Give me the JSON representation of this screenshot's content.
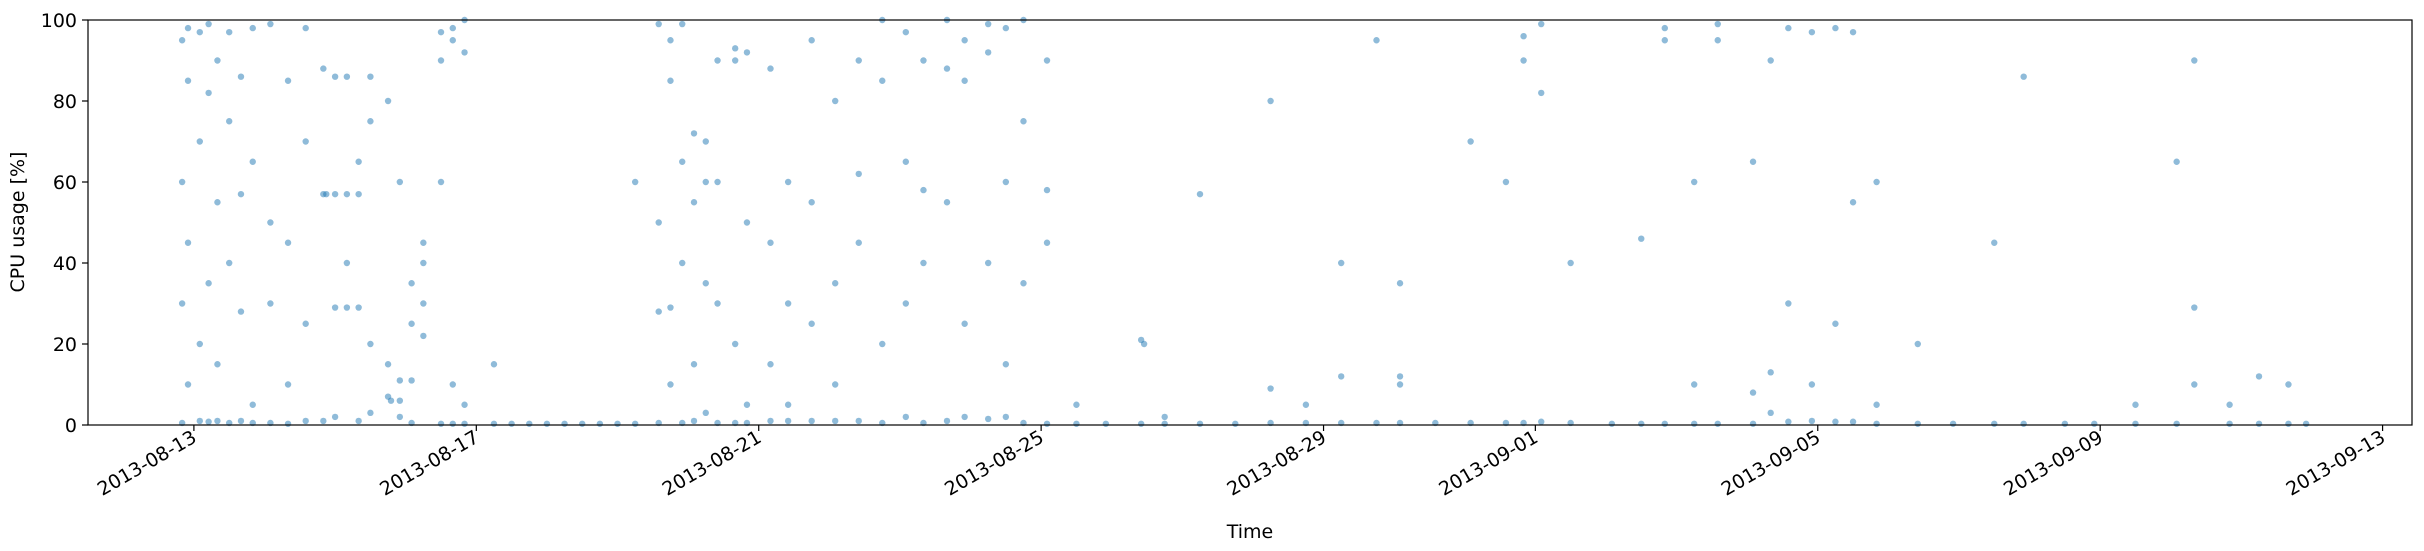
{
  "chart_data": {
    "type": "scatter",
    "x_label": "Time",
    "y_label": "CPU usage [%]",
    "color": "#1f77b4",
    "xlim": [
      "2013-08-11T12:00",
      "2013-09-13T10:00"
    ],
    "xticks": [
      "2013-08-13",
      "2013-08-17",
      "2013-08-21",
      "2013-08-25",
      "2013-08-29",
      "2013-09-01",
      "2013-09-05",
      "2013-09-09",
      "2013-09-13"
    ],
    "ylim": [
      0,
      100
    ],
    "yticks": [
      0,
      20,
      40,
      60,
      80,
      100
    ],
    "x": [
      "2013-08-12T20:00",
      "2013-08-12T20:00",
      "2013-08-12T20:00",
      "2013-08-12T20:00",
      "2013-08-12T22:00",
      "2013-08-12T22:00",
      "2013-08-12T22:00",
      "2013-08-12T22:00",
      "2013-08-13T02:00",
      "2013-08-13T02:00",
      "2013-08-13T02:00",
      "2013-08-13T02:00",
      "2013-08-13T05:00",
      "2013-08-13T05:00",
      "2013-08-13T05:00",
      "2013-08-13T05:00",
      "2013-08-13T08:00",
      "2013-08-13T08:00",
      "2013-08-13T08:00",
      "2013-08-13T08:00",
      "2013-08-13T12:00",
      "2013-08-13T12:00",
      "2013-08-13T12:00",
      "2013-08-13T12:00",
      "2013-08-13T16:00",
      "2013-08-13T16:00",
      "2013-08-13T16:00",
      "2013-08-13T16:00",
      "2013-08-13T20:00",
      "2013-08-13T20:00",
      "2013-08-13T20:00",
      "2013-08-13T20:00",
      "2013-08-14T02:00",
      "2013-08-14T02:00",
      "2013-08-14T02:00",
      "2013-08-14T02:00",
      "2013-08-14T08:00",
      "2013-08-14T08:00",
      "2013-08-14T08:00",
      "2013-08-14T08:00",
      "2013-08-14T14:00",
      "2013-08-14T14:00",
      "2013-08-14T14:00",
      "2013-08-14T14:00",
      "2013-08-14T20:00",
      "2013-08-14T21:00",
      "2013-08-14T20:00",
      "2013-08-14T20:00",
      "2013-08-15T00:00",
      "2013-08-15T00:00",
      "2013-08-15T00:00",
      "2013-08-15T00:00",
      "2013-08-15T04:00",
      "2013-08-15T04:00",
      "2013-08-15T04:00",
      "2013-08-15T04:00",
      "2013-08-15T08:00",
      "2013-08-15T08:00",
      "2013-08-15T08:00",
      "2013-08-15T08:00",
      "2013-08-15T12:00",
      "2013-08-15T12:00",
      "2013-08-15T12:00",
      "2013-08-15T12:00",
      "2013-08-15T18:00",
      "2013-08-15T19:00",
      "2013-08-15T18:00",
      "2013-08-15T18:00",
      "2013-08-15T22:00",
      "2013-08-15T22:00",
      "2013-08-15T22:00",
      "2013-08-15T22:00",
      "2013-08-16T02:00",
      "2013-08-16T02:00",
      "2013-08-16T02:00",
      "2013-08-16T02:00",
      "2013-08-16T06:00",
      "2013-08-16T06:00",
      "2013-08-16T06:00",
      "2013-08-16T06:00",
      "2013-08-16T12:00",
      "2013-08-16T12:00",
      "2013-08-16T12:00",
      "2013-08-16T12:00",
      "2013-08-16T16:00",
      "2013-08-16T16:00",
      "2013-08-16T16:00",
      "2013-08-16T16:00",
      "2013-08-16T20:00",
      "2013-08-16T20:00",
      "2013-08-16T20:00",
      "2013-08-16T20:00",
      "2013-08-17T06:00",
      "2013-08-17T06:00",
      "2013-08-17T12:00",
      "2013-08-17T18:00",
      "2013-08-18T00:00",
      "2013-08-18T06:00",
      "2013-08-18T12:00",
      "2013-08-18T18:00",
      "2013-08-19T00:00",
      "2013-08-19T06:00",
      "2013-08-19T06:00",
      "2013-08-19T14:00",
      "2013-08-19T14:00",
      "2013-08-19T14:00",
      "2013-08-19T14:00",
      "2013-08-19T18:00",
      "2013-08-19T18:00",
      "2013-08-19T18:00",
      "2013-08-19T18:00",
      "2013-08-19T22:00",
      "2013-08-19T22:00",
      "2013-08-19T22:00",
      "2013-08-19T22:00",
      "2013-08-20T02:00",
      "2013-08-20T02:00",
      "2013-08-20T02:00",
      "2013-08-20T02:00",
      "2013-08-20T06:00",
      "2013-08-20T06:00",
      "2013-08-20T06:00",
      "2013-08-20T06:00",
      "2013-08-20T10:00",
      "2013-08-20T10:00",
      "2013-08-20T10:00",
      "2013-08-20T10:00",
      "2013-08-20T16:00",
      "2013-08-20T16:00",
      "2013-08-20T16:00",
      "2013-08-20T16:00",
      "2013-08-20T20:00",
      "2013-08-20T20:00",
      "2013-08-20T20:00",
      "2013-08-20T20:00",
      "2013-08-21T04:00",
      "2013-08-21T04:00",
      "2013-08-21T04:00",
      "2013-08-21T04:00",
      "2013-08-21T10:00",
      "2013-08-21T10:00",
      "2013-08-21T10:00",
      "2013-08-21T10:00",
      "2013-08-21T18:00",
      "2013-08-21T18:00",
      "2013-08-21T18:00",
      "2013-08-21T18:00",
      "2013-08-22T02:00",
      "2013-08-22T02:00",
      "2013-08-22T02:00",
      "2013-08-22T02:00",
      "2013-08-22T10:00",
      "2013-08-22T10:00",
      "2013-08-22T10:00",
      "2013-08-22T10:00",
      "2013-08-22T18:00",
      "2013-08-22T18:00",
      "2013-08-22T18:00",
      "2013-08-22T18:00",
      "2013-08-23T02:00",
      "2013-08-23T02:00",
      "2013-08-23T02:00",
      "2013-08-23T02:00",
      "2013-08-23T08:00",
      "2013-08-23T08:00",
      "2013-08-23T08:00",
      "2013-08-23T08:00",
      "2013-08-23T16:00",
      "2013-08-23T16:00",
      "2013-08-23T16:00",
      "2013-08-23T16:00",
      "2013-08-23T22:00",
      "2013-08-23T22:00",
      "2013-08-23T22:00",
      "2013-08-23T22:00",
      "2013-08-24T06:00",
      "2013-08-24T06:00",
      "2013-08-24T06:00",
      "2013-08-24T06:00",
      "2013-08-24T12:00",
      "2013-08-24T12:00",
      "2013-08-24T12:00",
      "2013-08-24T12:00",
      "2013-08-24T18:00",
      "2013-08-24T18:00",
      "2013-08-24T18:00",
      "2013-08-24T18:00",
      "2013-08-25T02:00",
      "2013-08-25T02:00",
      "2013-08-25T02:00",
      "2013-08-25T02:00",
      "2013-08-25T12:00",
      "2013-08-25T12:00",
      "2013-08-25T22:00",
      "2013-08-26T10:00",
      "2013-08-26T11:00",
      "2013-08-26T10:00",
      "2013-08-26T18:00",
      "2013-08-26T18:00",
      "2013-08-27T06:00",
      "2013-08-27T06:00",
      "2013-08-27T18:00",
      "2013-08-28T06:00",
      "2013-08-28T06:00",
      "2013-08-28T06:00",
      "2013-08-28T18:00",
      "2013-08-28T18:00",
      "2013-08-29T06:00",
      "2013-08-29T06:00",
      "2013-08-29T06:00",
      "2013-08-29T18:00",
      "2013-08-29T18:00",
      "2013-08-30T02:00",
      "2013-08-30T02:00",
      "2013-08-30T02:00",
      "2013-08-30T02:00",
      "2013-08-30T14:00",
      "2013-08-31T02:00",
      "2013-08-31T02:00",
      "2013-08-31T14:00",
      "2013-08-31T14:00",
      "2013-08-31T20:00",
      "2013-08-31T20:00",
      "2013-08-31T20:00",
      "2013-09-01T02:00",
      "2013-09-01T02:00",
      "2013-09-01T02:00",
      "2013-09-01T12:00",
      "2013-09-01T12:00",
      "2013-09-02T02:00",
      "2013-09-02T12:00",
      "2013-09-02T12:00",
      "2013-09-02T20:00",
      "2013-09-02T20:00",
      "2013-09-02T20:00",
      "2013-09-03T06:00",
      "2013-09-03T06:00",
      "2013-09-03T06:00",
      "2013-09-03T14:00",
      "2013-09-03T14:00",
      "2013-09-03T14:00",
      "2013-09-04T02:00",
      "2013-09-04T02:00",
      "2013-09-04T02:00",
      "2013-09-04T08:00",
      "2013-09-04T08:00",
      "2013-09-04T08:00",
      "2013-09-04T14:00",
      "2013-09-04T14:00",
      "2013-09-04T14:00",
      "2013-09-04T22:00",
      "2013-09-04T22:00",
      "2013-09-04T22:00",
      "2013-09-05T06:00",
      "2013-09-05T06:00",
      "2013-09-05T06:00",
      "2013-09-05T12:00",
      "2013-09-05T12:00",
      "2013-09-05T12:00",
      "2013-09-05T20:00",
      "2013-09-05T20:00",
      "2013-09-05T20:00",
      "2013-09-06T10:00",
      "2013-09-06T10:00",
      "2013-09-06T22:00",
      "2013-09-07T12:00",
      "2013-09-07T12:00",
      "2013-09-07T22:00",
      "2013-09-07T22:00",
      "2013-09-08T12:00",
      "2013-09-08T22:00",
      "2013-09-09T12:00",
      "2013-09-09T12:00",
      "2013-09-10T02:00",
      "2013-09-10T02:00",
      "2013-09-10T08:00",
      "2013-09-10T08:00",
      "2013-09-10T08:00",
      "2013-09-10T20:00",
      "2013-09-10T20:00",
      "2013-09-11T06:00",
      "2013-09-11T06:00",
      "2013-09-11T16:00",
      "2013-09-11T16:00",
      "2013-09-11T22:00"
    ],
    "values": [
      95,
      60,
      30,
      0.5,
      85,
      10,
      98,
      45,
      97,
      70,
      20,
      1,
      99,
      82,
      35,
      0.8,
      90,
      55,
      15,
      1,
      97,
      40,
      75,
      0.5,
      86,
      57,
      28,
      1,
      98,
      65,
      5,
      0.5,
      99,
      30,
      50,
      0.5,
      85,
      45,
      10,
      0.3,
      98,
      70,
      25,
      1,
      57,
      57,
      88,
      1,
      57,
      29,
      86,
      2,
      57,
      29,
      86,
      40,
      57,
      29,
      65,
      1,
      86,
      20,
      75,
      3,
      7,
      6,
      15,
      80,
      11,
      6,
      2,
      60,
      11,
      25,
      35,
      0.5,
      30,
      40,
      45,
      22,
      97,
      0.3,
      60,
      90,
      98,
      95,
      10,
      0.3,
      100,
      92,
      5,
      0.3,
      0.3,
      15,
      0.3,
      0.3,
      0.3,
      0.3,
      0.3,
      0.3,
      0.3,
      0.3,
      60,
      99,
      50,
      28,
      0.5,
      85,
      29,
      95,
      10,
      99,
      40,
      65,
      0.5,
      72,
      15,
      55,
      1,
      70,
      60,
      35,
      3,
      60,
      30,
      90,
      0.5,
      93,
      90,
      20,
      0.5,
      92,
      5,
      50,
      0.5,
      1,
      45,
      15,
      88,
      1,
      30,
      60,
      5,
      1,
      95,
      55,
      25,
      1,
      80,
      35,
      10,
      1,
      62,
      45,
      90,
      100,
      85,
      20,
      0.5,
      97,
      65,
      30,
      2,
      58,
      40,
      90,
      0.5,
      100,
      88,
      55,
      1,
      95,
      85,
      25,
      2,
      99,
      92,
      40,
      1.5,
      98,
      60,
      15,
      2,
      100,
      35,
      75,
      0.5,
      58,
      45,
      90,
      0.3,
      0.3,
      5,
      0.3,
      21,
      20,
      0.3,
      0.3,
      2,
      0.3,
      57,
      0.3,
      0.5,
      9,
      80,
      0.5,
      5,
      0.5,
      12,
      40,
      0.5,
      95,
      12,
      10,
      0.5,
      35,
      0.5,
      0.5,
      70,
      0.5,
      60,
      96,
      90,
      0.5,
      99,
      82,
      0.8,
      0.5,
      40,
      0.3,
      0.3,
      46,
      98,
      95,
      0.3,
      10,
      0.3,
      60,
      99,
      95,
      0.3,
      0.3,
      8,
      65,
      13,
      3,
      90,
      98,
      0.8,
      30,
      1,
      10,
      97,
      0.8,
      98,
      25,
      97,
      0.8,
      55,
      0.3,
      60,
      5,
      0.3,
      20,
      0.3,
      0.3,
      45,
      86,
      0.3,
      0.3,
      0.3,
      0.3,
      5,
      0.3,
      65,
      29,
      90,
      10,
      0.3,
      5,
      0.3,
      12,
      10,
      0.3,
      0.3
    ]
  }
}
